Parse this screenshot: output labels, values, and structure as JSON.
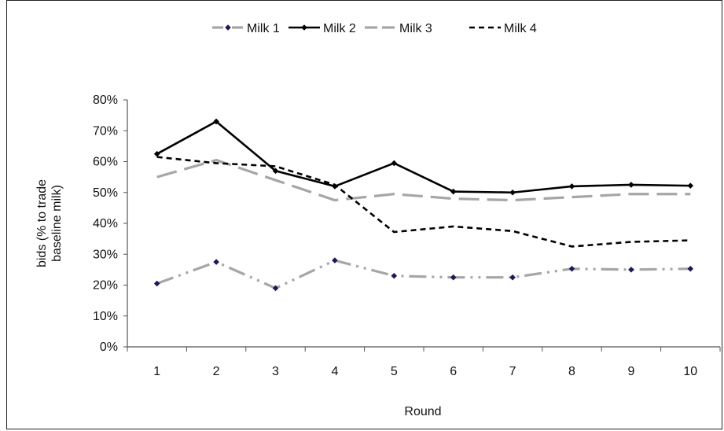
{
  "chart_data": {
    "type": "line",
    "categories": [
      "1",
      "2",
      "3",
      "4",
      "5",
      "6",
      "7",
      "8",
      "9",
      "10"
    ],
    "xlabel": "Round",
    "ylabel": "bids (% to trade baseline milk)",
    "ylabel_lines": [
      "bids (% to trade",
      "baseline milk)"
    ],
    "ylim": [
      0,
      80
    ],
    "yticks": [
      "0%",
      "10%",
      "20%",
      "30%",
      "40%",
      "50%",
      "60%",
      "70%",
      "80%"
    ],
    "grid": false,
    "legend_position": "top",
    "series": [
      {
        "name": "Milk 1",
        "values": [
          20.5,
          27.5,
          19,
          28,
          23,
          22.5,
          22.5,
          25.3,
          25,
          25.3
        ],
        "color": "#a6a6a6",
        "style": "dash-dot-dot",
        "marker_color": "#1a1a5a"
      },
      {
        "name": "Milk 2",
        "values": [
          62.5,
          73,
          57,
          52,
          59.5,
          50.3,
          50,
          52,
          52.5,
          52.2
        ],
        "color": "#000000",
        "style": "solid",
        "marker_color": "#000000"
      },
      {
        "name": "Milk 3",
        "values": [
          55,
          60.5,
          54,
          47.5,
          49.5,
          48,
          47.5,
          48.5,
          49.5,
          49.5
        ],
        "color": "#a6a6a6",
        "style": "long-dash",
        "marker_color": null
      },
      {
        "name": "Milk 4",
        "values": [
          61.5,
          59.5,
          58.5,
          52.5,
          37.2,
          39,
          37.5,
          32.5,
          34,
          34.5
        ],
        "color": "#000000",
        "style": "short-dash",
        "marker_color": null
      }
    ]
  }
}
